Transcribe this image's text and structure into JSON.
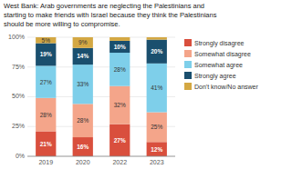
{
  "chart_data": {
    "type": "bar",
    "stacked": true,
    "title": "West Bank: Arab governments are neglecting the Palestinians and\nstarting to make friends with Israel because they think the Palestinians\nshould be more willing to compromise.",
    "categories": [
      "2019",
      "2020",
      "2022",
      "2023"
    ],
    "series": [
      {
        "name": "Strongly disagree",
        "color": "#d94f3d",
        "values": [
          21,
          16,
          27,
          12
        ],
        "value_labels": [
          "21%",
          "16%",
          "27%",
          "12%"
        ]
      },
      {
        "name": "Somewhat disagree",
        "color": "#f4a58a",
        "values": [
          28,
          28,
          32,
          25
        ],
        "value_labels": [
          "28%",
          "28%",
          "32%",
          "25%"
        ]
      },
      {
        "name": "Somewhat agree",
        "color": "#7ecfea",
        "values": [
          27,
          33,
          28,
          41
        ],
        "value_labels": [
          "27%",
          "33%",
          "28%",
          "41%"
        ]
      },
      {
        "name": "Strongly agree",
        "color": "#1a4f6e",
        "values": [
          19,
          14,
          10,
          20
        ],
        "value_labels": [
          "19%",
          "14%",
          "10%",
          "20%"
        ]
      },
      {
        "name": "Don't know/No answer",
        "color": "#d4a843",
        "values": [
          5,
          9,
          3,
          2
        ],
        "value_labels": [
          "5%",
          "9%",
          null,
          null
        ]
      }
    ],
    "ylim": [
      0,
      100
    ],
    "yticks": [
      {
        "value": 0,
        "label": "0%"
      },
      {
        "value": 25,
        "label": "25%"
      },
      {
        "value": 50,
        "label": "50%"
      },
      {
        "value": 75,
        "label": "75%"
      },
      {
        "value": 100,
        "label": "100%"
      }
    ],
    "grid": true,
    "data_labels": true,
    "legend": "right"
  }
}
